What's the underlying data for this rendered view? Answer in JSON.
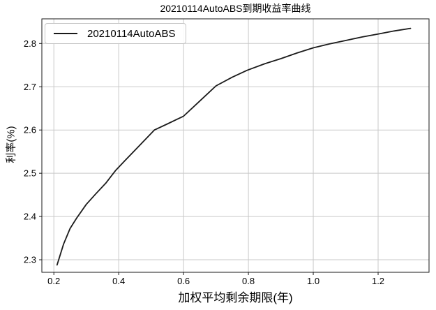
{
  "figure": {
    "title": "20210114AutoABS到期收益率曲线",
    "xlabel": "加权平均剩余期限(年)",
    "ylabel": "利率(%)",
    "legend_label": "20210114AutoABS"
  },
  "chart_data": {
    "type": "line",
    "title": "20210114AutoABS到期收益率曲线",
    "xlabel": "加权平均剩余期限(年)",
    "ylabel": "利率(%)",
    "legend": [
      "20210114AutoABS"
    ],
    "legend_position": "upper left",
    "grid": true,
    "xlim": [
      0.163,
      1.357
    ],
    "ylim": [
      2.271,
      2.857
    ],
    "xticks": [
      0.2,
      0.4,
      0.6,
      0.8,
      1.0,
      1.2
    ],
    "yticks": [
      2.3,
      2.4,
      2.5,
      2.6,
      2.7,
      2.8
    ],
    "series": [
      {
        "name": "20210114AutoABS",
        "color": "#1a1a1a",
        "points": [
          [
            0.21,
            2.288
          ],
          [
            0.23,
            2.336
          ],
          [
            0.25,
            2.372
          ],
          [
            0.27,
            2.396
          ],
          [
            0.3,
            2.428
          ],
          [
            0.33,
            2.453
          ],
          [
            0.36,
            2.477
          ],
          [
            0.39,
            2.506
          ],
          [
            0.42,
            2.53
          ],
          [
            0.46,
            2.561
          ],
          [
            0.51,
            2.6
          ],
          [
            0.55,
            2.614
          ],
          [
            0.6,
            2.632
          ],
          [
            0.65,
            2.667
          ],
          [
            0.7,
            2.702
          ],
          [
            0.75,
            2.722
          ],
          [
            0.796,
            2.738
          ],
          [
            0.85,
            2.753
          ],
          [
            0.9,
            2.765
          ],
          [
            0.95,
            2.778
          ],
          [
            1.0,
            2.79
          ],
          [
            1.05,
            2.799
          ],
          [
            1.1,
            2.807
          ],
          [
            1.15,
            2.815
          ],
          [
            1.2,
            2.822
          ],
          [
            1.25,
            2.829
          ],
          [
            1.3,
            2.835
          ]
        ]
      }
    ]
  },
  "style": {
    "grid_color": "#c9c9c9",
    "axis_color": "#1a1a1a",
    "tick_label_color": "#000000",
    "line_color": "#1a1a1a",
    "background": "#ffffff",
    "legend_border": "#c4c4c4"
  }
}
